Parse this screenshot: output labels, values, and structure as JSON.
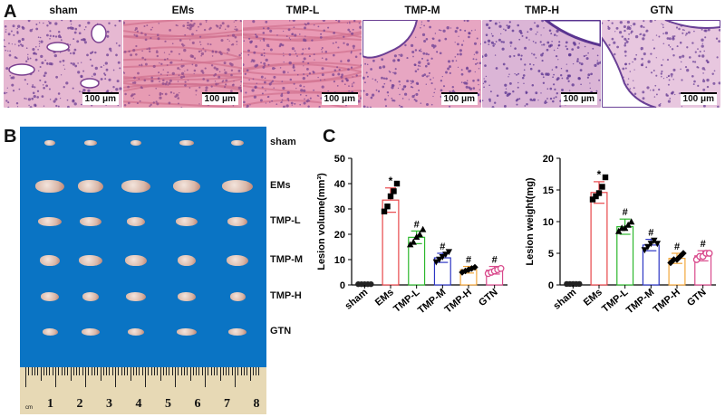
{
  "panels": {
    "a": "A",
    "b": "B",
    "c": "C"
  },
  "histology": {
    "groups": [
      "sham",
      "EMs",
      "TMP-L",
      "TMP-M",
      "TMP-H",
      "GTN"
    ],
    "scale_bar": "100 μm"
  },
  "specimen_photo": {
    "row_labels": [
      "sham",
      "EMs",
      "TMP-L",
      "TMP-M",
      "TMP-H",
      "GTN"
    ],
    "ruler_numbers": [
      "1",
      "2",
      "3",
      "4",
      "5",
      "6",
      "7",
      "8"
    ],
    "ruler_unit": "cm"
  },
  "chart_data": [
    {
      "type": "bar",
      "categories": [
        "sham",
        "EMs",
        "TMP-L",
        "TMP-M",
        "TMP-H",
        "GTN"
      ],
      "values": [
        0.3,
        33.5,
        18.8,
        10.7,
        6.0,
        5.8
      ],
      "errors": [
        0.2,
        4.8,
        2.5,
        1.8,
        1.3,
        1.5
      ],
      "points": [
        [
          0.3,
          0.3,
          0.3,
          0.3,
          0.3
        ],
        [
          29,
          31,
          35,
          37,
          40
        ],
        [
          16,
          17,
          19,
          20,
          22
        ],
        [
          9,
          10,
          11,
          12,
          13
        ],
        [
          5,
          5.5,
          6,
          6.5,
          7
        ],
        [
          4.5,
          5,
          5.5,
          6,
          6.5
        ]
      ],
      "annotations": [
        "",
        "*",
        "#",
        "#",
        "#",
        "#"
      ],
      "colors": [
        "#222222",
        "#e8474b",
        "#2db82d",
        "#2c35c4",
        "#f2a63b",
        "#d94a8c"
      ],
      "markers": [
        "circle",
        "square",
        "triangle",
        "inverted-triangle",
        "diamond",
        "open-circle"
      ],
      "ylabel": "Lesion volume(mm³)",
      "xlabel": "",
      "ylim": [
        0,
        50
      ],
      "yticks": [
        0,
        10,
        20,
        30,
        40,
        50
      ]
    },
    {
      "type": "bar",
      "categories": [
        "sham",
        "EMs",
        "TMP-L",
        "TMP-M",
        "TMP-H",
        "GTN"
      ],
      "values": [
        0.15,
        14.6,
        9.2,
        6.3,
        4.2,
        4.6
      ],
      "errors": [
        0.1,
        1.7,
        1.2,
        0.9,
        0.8,
        0.8
      ],
      "points": [
        [
          0.15,
          0.15,
          0.15,
          0.15,
          0.15
        ],
        [
          13.5,
          14,
          14.5,
          15.5,
          17
        ],
        [
          8.5,
          9,
          9,
          9.5,
          10
        ],
        [
          5.5,
          6,
          6.5,
          7,
          6.5
        ],
        [
          3.5,
          4,
          4,
          4.5,
          5
        ],
        [
          4,
          4.5,
          4.5,
          5,
          5
        ]
      ],
      "annotations": [
        "",
        "*",
        "#",
        "#",
        "#",
        "#"
      ],
      "colors": [
        "#222222",
        "#e8474b",
        "#2db82d",
        "#2c35c4",
        "#f2a63b",
        "#d94a8c"
      ],
      "markers": [
        "circle",
        "square",
        "triangle",
        "inverted-triangle",
        "diamond",
        "open-circle"
      ],
      "ylabel": "Lesion weight(mg)",
      "xlabel": "",
      "ylim": [
        0,
        20
      ],
      "yticks": [
        0,
        5,
        10,
        15,
        20
      ]
    }
  ]
}
